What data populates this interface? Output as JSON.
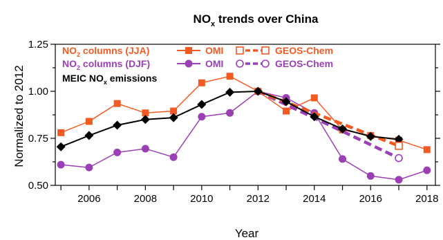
{
  "chart_data": {
    "type": "line",
    "title": {
      "main": "NO",
      "sub": "x",
      "rest": " trends over China"
    },
    "xlabel": "Year",
    "ylabel": "Normalized to 2012",
    "xlim": [
      2004.8,
      2018.3
    ],
    "ylim": [
      0.5,
      1.25
    ],
    "xticks": [
      "2006",
      "2008",
      "2010",
      "2012",
      "2014",
      "2016",
      "2018"
    ],
    "yticks": [
      "0.50",
      "0.75",
      "1.00",
      "1.25"
    ],
    "colors": {
      "jja": "#f25a23",
      "djf": "#9b3fb5",
      "meic": "#000000"
    },
    "legend": {
      "placement": "top-left",
      "jja_label": {
        "main": "NO",
        "sub": "2",
        "rest": " columns (JJA)"
      },
      "djf_label": {
        "main": "NO",
        "sub": "2",
        "rest": " columns (DJF)"
      },
      "meic_label": {
        "main": "MEIC NO",
        "sub": "x",
        "rest": " emissions"
      },
      "omi": "OMI",
      "geos": "GEOS-Chem"
    },
    "series": [
      {
        "id": "omi_jja",
        "x": [
          2005,
          2006,
          2007,
          2008,
          2009,
          2010,
          2011,
          2012,
          2013,
          2014,
          2015,
          2016,
          2017,
          2018
        ],
        "values": [
          0.78,
          0.84,
          0.935,
          0.885,
          0.895,
          1.045,
          1.08,
          1.0,
          0.895,
          0.965,
          0.795,
          0.765,
          0.74,
          0.69
        ]
      },
      {
        "id": "omi_djf",
        "x": [
          2005,
          2006,
          2007,
          2008,
          2009,
          2010,
          2011,
          2012,
          2013,
          2014,
          2015,
          2016,
          2017,
          2018
        ],
        "values": [
          0.61,
          0.595,
          0.675,
          0.695,
          0.65,
          0.865,
          0.885,
          1.0,
          0.965,
          0.885,
          0.64,
          0.55,
          0.53,
          0.58
        ]
      },
      {
        "id": "geos_jja",
        "x": [
          2012,
          2017
        ],
        "values": [
          1.0,
          0.71
        ]
      },
      {
        "id": "geos_djf",
        "x": [
          2012,
          2017
        ],
        "values": [
          1.0,
          0.645
        ]
      },
      {
        "id": "meic",
        "x": [
          2005,
          2006,
          2007,
          2008,
          2009,
          2010,
          2011,
          2012,
          2013,
          2014,
          2015,
          2016,
          2017
        ],
        "values": [
          0.705,
          0.765,
          0.82,
          0.85,
          0.86,
          0.93,
          0.995,
          1.0,
          0.945,
          0.865,
          0.8,
          0.76,
          0.745
        ]
      }
    ]
  }
}
